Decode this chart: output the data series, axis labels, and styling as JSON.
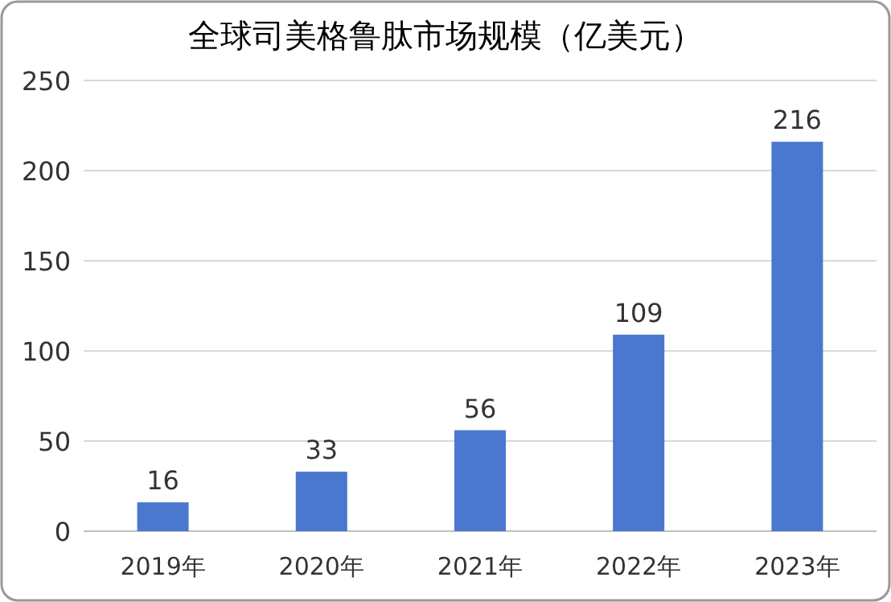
{
  "chart_data": {
    "type": "bar",
    "title": "全球司美格鲁肽市场规模（亿美元）",
    "categories": [
      "2019年",
      "2020年",
      "2021年",
      "2022年",
      "2023年"
    ],
    "values": [
      16,
      33,
      56,
      109,
      216
    ],
    "color": "#4a78cf",
    "ylim": [
      0,
      250
    ],
    "yticks": [
      0,
      50,
      100,
      150,
      200,
      250
    ],
    "grid": "y",
    "data_labels": true
  }
}
